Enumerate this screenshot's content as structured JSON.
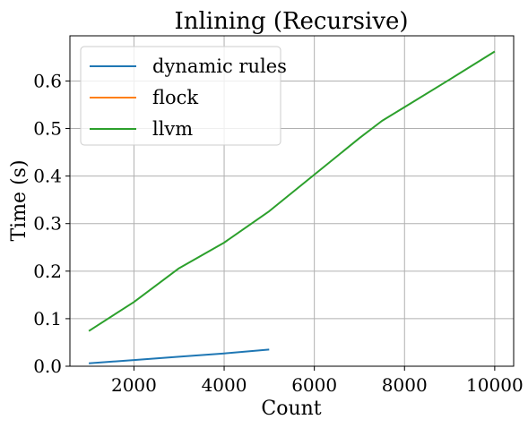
{
  "chart_data": {
    "type": "line",
    "title": "Inlining (Recursive)",
    "xlabel": "Count",
    "ylabel": "Time (s)",
    "xlim": [
      580,
      10420
    ],
    "ylim": [
      0,
      0.695
    ],
    "xticks": [
      2000,
      4000,
      6000,
      8000,
      10000
    ],
    "yticks": [
      0.0,
      0.1,
      0.2,
      0.3,
      0.4,
      0.5,
      0.6
    ],
    "grid": true,
    "legend_position": "top-left",
    "series": [
      {
        "name": "dynamic rules",
        "color": "#1f77b4",
        "x": [
          1000,
          2000,
          3000,
          4000,
          5000
        ],
        "y": [
          0.006,
          0.013,
          0.02,
          0.027,
          0.035
        ]
      },
      {
        "name": "flock",
        "color": "#ff7f0e",
        "x": [],
        "y": []
      },
      {
        "name": "llvm",
        "color": "#2ca02c",
        "x": [
          1000,
          2000,
          3000,
          4000,
          5000,
          6000,
          7000,
          7500,
          8000,
          9000,
          10000
        ],
        "y": [
          0.074,
          0.135,
          0.206,
          0.26,
          0.326,
          0.403,
          0.48,
          0.516,
          0.545,
          0.603,
          0.662
        ]
      }
    ]
  }
}
